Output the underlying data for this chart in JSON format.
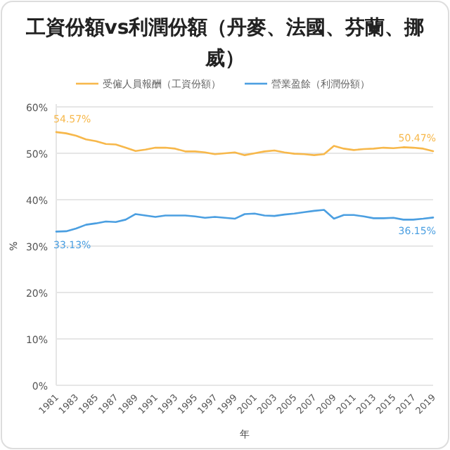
{
  "chart_data": {
    "type": "line",
    "title": "工資份額vs利潤份額（丹麥、法國、芬蘭、挪威）",
    "xlabel": "年",
    "ylabel": "%",
    "x": [
      1981,
      1982,
      1983,
      1984,
      1985,
      1986,
      1987,
      1988,
      1989,
      1990,
      1991,
      1992,
      1993,
      1994,
      1995,
      1996,
      1997,
      1998,
      1999,
      2000,
      2001,
      2002,
      2003,
      2004,
      2005,
      2006,
      2007,
      2008,
      2009,
      2010,
      2011,
      2012,
      2013,
      2014,
      2015,
      2016,
      2017,
      2018,
      2019
    ],
    "series": [
      {
        "name": "受僱人員報酬（工資份額）",
        "color": "#f7b84b",
        "values": [
          54.57,
          54.3,
          53.8,
          53.0,
          52.6,
          52.0,
          51.9,
          51.2,
          50.5,
          50.8,
          51.2,
          51.2,
          51.0,
          50.4,
          50.4,
          50.2,
          49.8,
          50.0,
          50.2,
          49.6,
          50.0,
          50.4,
          50.6,
          50.2,
          49.9,
          49.8,
          49.6,
          49.8,
          51.6,
          51.0,
          50.7,
          50.9,
          51.0,
          51.2,
          51.1,
          51.3,
          51.2,
          51.0,
          50.47
        ],
        "value_labels": [
          "54.57%",
          null,
          null,
          null,
          null,
          null,
          null,
          null,
          null,
          null,
          null,
          null,
          null,
          null,
          null,
          null,
          null,
          null,
          null,
          null,
          null,
          null,
          null,
          null,
          null,
          null,
          null,
          null,
          null,
          null,
          null,
          null,
          null,
          null,
          null,
          null,
          null,
          null,
          "50.47%"
        ]
      },
      {
        "name": "營業盈餘（利潤份額）",
        "color": "#4b9fe1",
        "values": [
          33.13,
          33.2,
          33.8,
          34.6,
          34.9,
          35.3,
          35.2,
          35.7,
          36.9,
          36.6,
          36.3,
          36.6,
          36.6,
          36.6,
          36.4,
          36.1,
          36.3,
          36.1,
          35.9,
          36.9,
          37.0,
          36.6,
          36.5,
          36.8,
          37.0,
          37.3,
          37.6,
          37.8,
          35.9,
          36.7,
          36.7,
          36.4,
          36.0,
          36.0,
          36.1,
          35.7,
          35.7,
          35.9,
          36.15
        ],
        "value_labels": [
          "33.13%",
          null,
          null,
          null,
          null,
          null,
          null,
          null,
          null,
          null,
          null,
          null,
          null,
          null,
          null,
          null,
          null,
          null,
          null,
          null,
          null,
          null,
          null,
          null,
          null,
          null,
          null,
          null,
          null,
          null,
          null,
          null,
          null,
          null,
          null,
          null,
          null,
          null,
          "36.15%"
        ]
      }
    ],
    "xlim": [
      1981,
      2019
    ],
    "xticks": [
      1981,
      1983,
      1985,
      1987,
      1989,
      1991,
      1993,
      1995,
      1997,
      1999,
      2001,
      2003,
      2005,
      2007,
      2009,
      2011,
      2013,
      2015,
      2017,
      2019
    ],
    "ylim": [
      0,
      60
    ],
    "yticks": [
      {
        "value": 0,
        "label": "0%"
      },
      {
        "value": 10,
        "label": "10%"
      },
      {
        "value": 20,
        "label": "20%"
      },
      {
        "value": 30,
        "label": "30%"
      },
      {
        "value": 40,
        "label": "40%"
      },
      {
        "value": 50,
        "label": "50%"
      },
      {
        "value": 60,
        "label": "60%"
      }
    ],
    "grid": "y",
    "legend": "top",
    "marker": "none",
    "line_style": "solid"
  }
}
